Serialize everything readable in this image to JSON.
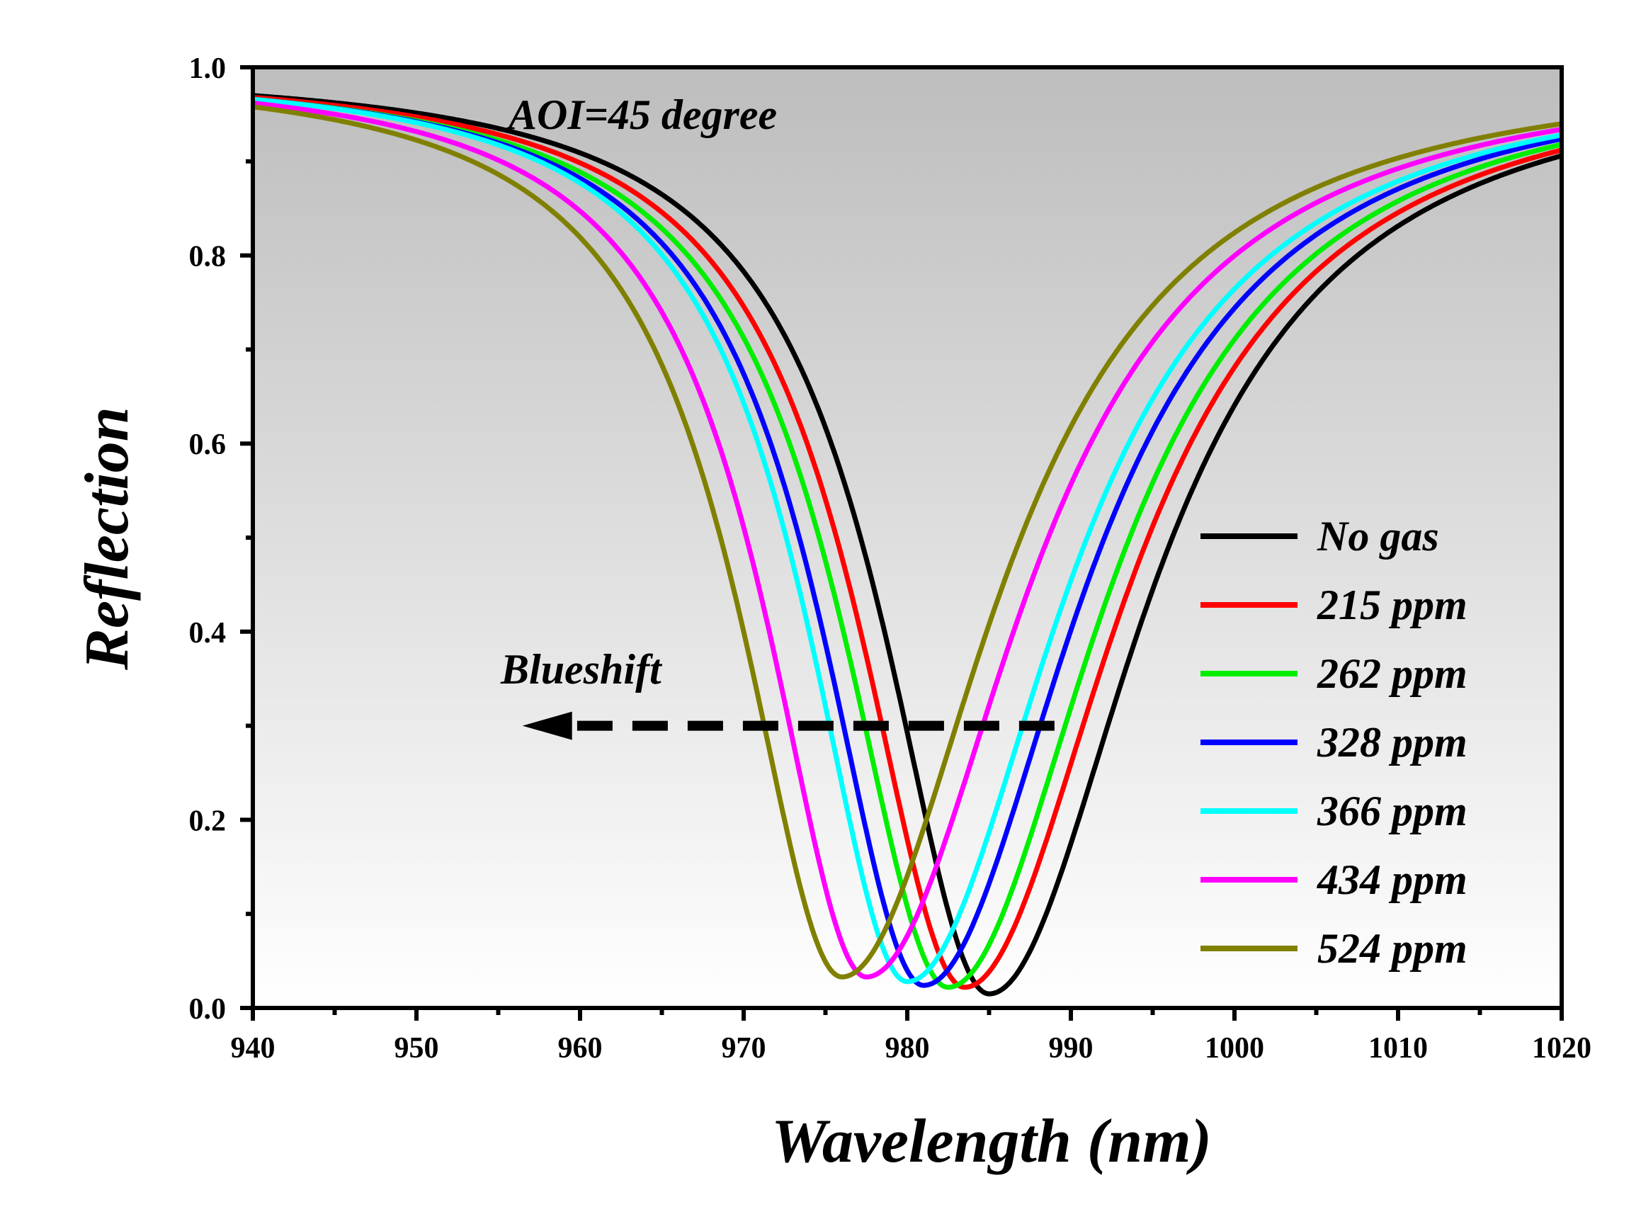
{
  "chart_data": {
    "type": "line",
    "title": "",
    "xlabel": "Wavelength (nm)",
    "ylabel": "Reflection",
    "xlim": [
      940,
      1020
    ],
    "ylim": [
      0.0,
      1.0
    ],
    "xticks": [
      940,
      950,
      960,
      970,
      980,
      990,
      1000,
      1010,
      1020
    ],
    "xtick_labels": [
      "940",
      "950",
      "960",
      "970",
      "980",
      "990",
      "1000",
      "1010",
      "1020"
    ],
    "yticks": [
      0.0,
      0.2,
      0.4,
      0.6,
      0.8,
      1.0
    ],
    "ytick_labels": [
      "0.0",
      "0.2",
      "0.4",
      "0.6",
      "0.8",
      "1.0"
    ],
    "grid": false,
    "background": "vertical gradient from gray (top) to white (bottom)",
    "legend_position": "center-right",
    "annotations": {
      "aoi": "AOI=45 degree",
      "blueshift": "Blueshift",
      "arrow": {
        "y": 0.3,
        "x_start": 989,
        "x_end": 957,
        "direction": "left"
      }
    },
    "series": [
      {
        "name": "No gas",
        "color": "#000000",
        "center": 985.0,
        "min": 0.015,
        "edge_left": 0.97,
        "edge_right": 0.906
      },
      {
        "name": "215 ppm",
        "color": "#ff0000",
        "center": 983.5,
        "min": 0.022,
        "edge_left": 0.968,
        "edge_right": 0.912
      },
      {
        "name": "262 ppm",
        "color": "#00ee00",
        "center": 982.5,
        "min": 0.022,
        "edge_left": 0.966,
        "edge_right": 0.918
      },
      {
        "name": "328 ppm",
        "color": "#0000ff",
        "center": 981.0,
        "min": 0.024,
        "edge_left": 0.966,
        "edge_right": 0.924
      },
      {
        "name": "366 ppm",
        "color": "#00ffff",
        "center": 980.0,
        "min": 0.028,
        "edge_left": 0.966,
        "edge_right": 0.928
      },
      {
        "name": "434 ppm",
        "color": "#ff00ff",
        "center": 977.5,
        "min": 0.033,
        "edge_left": 0.962,
        "edge_right": 0.934
      },
      {
        "name": "524 ppm",
        "color": "#808000",
        "center": 976.0,
        "min": 0.033,
        "edge_left": 0.958,
        "edge_right": 0.94
      }
    ]
  }
}
